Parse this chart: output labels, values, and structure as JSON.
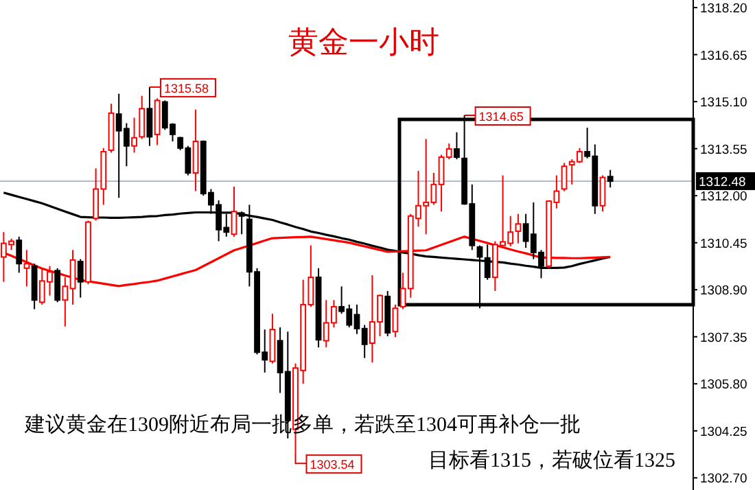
{
  "chart_data": {
    "type": "candlestick",
    "title": "黄金一小时",
    "categories": [
      null,
      null,
      null,
      null,
      null,
      null,
      null,
      null,
      null,
      null,
      null,
      null,
      null,
      null,
      null,
      null,
      null,
      null,
      null,
      null,
      null,
      null,
      null,
      null,
      null,
      null,
      null,
      null,
      null,
      null,
      null,
      null,
      null,
      null,
      null,
      null,
      null,
      null,
      null,
      null,
      null,
      null,
      null,
      null,
      null,
      null,
      null,
      null,
      null,
      null,
      null,
      null,
      null,
      null,
      null,
      null,
      null,
      null,
      null,
      null,
      null,
      null,
      null,
      null,
      null,
      null,
      null,
      null,
      null,
      null,
      null,
      null,
      null,
      null,
      null,
      null,
      null,
      null,
      null,
      null
    ],
    "ohlc": [
      [
        1309.98,
        1310.8,
        1309.16,
        1310.43
      ],
      [
        1310.39,
        1310.58,
        1310.21,
        1310.5
      ],
      [
        1310.53,
        1310.65,
        1309.46,
        1309.76
      ],
      [
        1309.61,
        1310.21,
        1309.01,
        1309.76
      ],
      [
        1309.68,
        1309.76,
        1308.26,
        1308.56
      ],
      [
        1308.49,
        1309.61,
        1308.41,
        1309.19
      ],
      [
        1309.16,
        1309.68,
        1308.71,
        1309.49
      ],
      [
        1309.53,
        1309.61,
        1308.49,
        1308.56
      ],
      [
        1308.56,
        1309.31,
        1307.69,
        1309.01
      ],
      [
        1308.94,
        1310.21,
        1308.41,
        1309.88
      ],
      [
        1309.83,
        1309.91,
        1308.64,
        1309.16
      ],
      [
        1309.16,
        1311.18,
        1309.08,
        1311.13
      ],
      [
        1311.25,
        1312.9,
        1311.18,
        1312.22
      ],
      [
        1312.22,
        1313.57,
        1311.7,
        1313.45
      ],
      [
        1313.5,
        1315.03,
        1313.42,
        1314.72
      ],
      [
        1314.69,
        1315.36,
        1311.93,
        1314.14
      ],
      [
        1314.21,
        1314.39,
        1312.97,
        1313.64
      ],
      [
        1313.64,
        1314.57,
        1313.42,
        1313.91
      ],
      [
        1313.94,
        1315.29,
        1313.87,
        1314.87
      ],
      [
        1314.87,
        1315.58,
        1313.64,
        1313.94
      ],
      [
        1314.02,
        1315.21,
        1313.67,
        1315.14
      ],
      [
        1315.09,
        1315.14,
        1314.17,
        1314.24
      ],
      [
        1314.35,
        1314.39,
        1313.79,
        1314.02
      ],
      [
        1313.91,
        1313.94,
        1313.5,
        1313.57
      ],
      [
        1313.57,
        1313.64,
        1312.67,
        1312.75
      ],
      [
        1312.75,
        1314.84,
        1312.15,
        1313.79
      ],
      [
        1313.79,
        1313.82,
        1312.0,
        1312.07
      ],
      [
        1312.1,
        1312.22,
        1311.4,
        1311.7
      ],
      [
        1311.7,
        1311.85,
        1310.5,
        1310.88
      ],
      [
        1310.95,
        1311.4,
        1310.65,
        1310.8
      ],
      [
        1310.73,
        1312.3,
        1310.65,
        1311.48
      ],
      [
        1311.43,
        1311.48,
        1310.73,
        1311.33
      ],
      [
        1311.22,
        1311.7,
        1309.01,
        1309.49
      ],
      [
        1309.49,
        1309.61,
        1306.77,
        1306.84
      ],
      [
        1306.84,
        1307.59,
        1306.17,
        1306.59
      ],
      [
        1306.54,
        1308.11,
        1306.47,
        1307.59
      ],
      [
        1307.22,
        1307.66,
        1305.5,
        1306.17
      ],
      [
        1306.2,
        1307.52,
        1304.0,
        1304.6
      ],
      [
        1304.3,
        1306.47,
        1303.54,
        1306.32
      ],
      [
        1306.24,
        1309.23,
        1305.8,
        1308.41
      ],
      [
        1308.41,
        1310.36,
        1308.34,
        1309.31
      ],
      [
        1309.31,
        1309.61,
        1307.0,
        1307.25
      ],
      [
        1307.22,
        1308.56,
        1307.0,
        1307.81
      ],
      [
        1307.81,
        1308.56,
        1307.66,
        1308.34
      ],
      [
        1308.34,
        1309.01,
        1308.11,
        1308.19
      ],
      [
        1308.26,
        1308.41,
        1307.66,
        1307.74
      ],
      [
        1308.08,
        1308.41,
        1307.44,
        1307.62
      ],
      [
        1307.62,
        1307.74,
        1306.65,
        1307.1
      ],
      [
        1307.14,
        1309.38,
        1306.5,
        1307.84
      ],
      [
        1307.84,
        1308.74,
        1307.37,
        1308.71
      ],
      [
        1308.68,
        1308.86,
        1307.37,
        1307.48
      ],
      [
        1307.52,
        1308.41,
        1307.34,
        1308.29
      ],
      [
        1308.34,
        1309.46,
        1308.26,
        1308.94
      ],
      [
        1308.94,
        1311.4,
        1308.64,
        1311.33
      ],
      [
        1311.25,
        1312.82,
        1310.98,
        1311.67
      ],
      [
        1311.67,
        1313.87,
        1310.73,
        1311.78
      ],
      [
        1311.78,
        1312.75,
        1311.7,
        1312.37
      ],
      [
        1312.37,
        1313.35,
        1311.48,
        1313.27
      ],
      [
        1313.27,
        1313.72,
        1313.2,
        1313.54
      ],
      [
        1313.54,
        1314.09,
        1313.2,
        1313.27
      ],
      [
        1313.23,
        1314.65,
        1311.7,
        1311.73
      ],
      [
        1311.73,
        1312.37,
        1310.21,
        1310.36
      ],
      [
        1310.31,
        1310.36,
        1308.29,
        1309.98
      ],
      [
        1309.95,
        1310.39,
        1309.23,
        1309.31
      ],
      [
        1309.31,
        1310.5,
        1308.86,
        1310.39
      ],
      [
        1310.36,
        1312.67,
        1310.36,
        1310.48
      ],
      [
        1310.43,
        1311.33,
        1310.33,
        1310.8
      ],
      [
        1310.83,
        1311.4,
        1310.43,
        1311.07
      ],
      [
        1311.07,
        1311.4,
        1310.28,
        1310.5
      ],
      [
        1310.73,
        1311.78,
        1309.91,
        1310.13
      ],
      [
        1310.13,
        1310.21,
        1309.28,
        1309.68
      ],
      [
        1309.68,
        1311.85,
        1309.61,
        1311.82
      ],
      [
        1311.78,
        1312.67,
        1311.58,
        1312.15
      ],
      [
        1312.22,
        1313.08,
        1312.15,
        1312.97
      ],
      [
        1313.02,
        1313.2,
        1312.37,
        1313.12
      ],
      [
        1313.12,
        1313.57,
        1313.08,
        1313.45
      ],
      [
        1313.45,
        1314.24,
        1313.23,
        1313.3
      ],
      [
        1313.3,
        1313.69,
        1311.4,
        1311.67
      ],
      [
        1311.67,
        1312.67,
        1311.48,
        1312.6
      ],
      [
        1312.63,
        1312.85,
        1312.27,
        1312.48
      ]
    ],
    "colors": [
      "#ff0000",
      "#ff0000",
      "#000000",
      "#ff0000",
      "#000000",
      "#ff0000",
      "#ff0000",
      "#000000",
      "#ff0000",
      "#ff0000",
      "#000000",
      "#ff0000",
      "#ff0000",
      "#ff0000",
      "#ff0000",
      "#000000",
      "#000000",
      "#ff0000",
      "#ff0000",
      "#000000",
      "#ff0000",
      "#000000",
      "#000000",
      "#000000",
      "#000000",
      "#ff0000",
      "#000000",
      "#000000",
      "#000000",
      "#000000",
      "#ff0000",
      "#000000",
      "#000000",
      "#000000",
      "#000000",
      "#ff0000",
      "#000000",
      "#000000",
      "#ff0000",
      "#ff0000",
      "#ff0000",
      "#000000",
      "#ff0000",
      "#ff0000",
      "#000000",
      "#000000",
      "#000000",
      "#000000",
      "#ff0000",
      "#ff0000",
      "#000000",
      "#ff0000",
      "#ff0000",
      "#ff0000",
      "#ff0000",
      "#ff0000",
      "#ff0000",
      "#ff0000",
      "#ff0000",
      "#000000",
      "#000000",
      "#000000",
      "#000000",
      "#000000",
      "#ff0000",
      "#ff0000",
      "#ff0000",
      "#ff0000",
      "#000000",
      "#000000",
      "#000000",
      "#ff0000",
      "#ff0000",
      "#ff0000",
      "#ff0000",
      "#ff0000",
      "#000000",
      "#000000",
      "#ff0000",
      "#000000"
    ],
    "series": [
      {
        "type": "line",
        "color": "#000000",
        "values": [
          1312.1,
          1312.03,
          1311.96,
          1311.89,
          1311.82,
          1311.75,
          1311.66,
          1311.57,
          1311.48,
          1311.39,
          1311.3,
          1311.29,
          1311.28,
          1311.28,
          1311.27,
          1311.27,
          1311.28,
          1311.29,
          1311.3,
          1311.32,
          1311.33,
          1311.36,
          1311.38,
          1311.41,
          1311.43,
          1311.45,
          1311.45,
          1311.45,
          1311.44,
          1311.44,
          1311.44,
          1311.39,
          1311.34,
          1311.3,
          1311.25,
          1311.2,
          1311.12,
          1311.05,
          1310.97,
          1310.9,
          1310.82,
          1310.77,
          1310.71,
          1310.66,
          1310.6,
          1310.55,
          1310.48,
          1310.42,
          1310.35,
          1310.29,
          1310.22,
          1310.18,
          1310.13,
          1310.09,
          1310.04,
          1310.0,
          1309.98,
          1309.96,
          1309.94,
          1309.92,
          1309.9,
          1309.88,
          1309.86,
          1309.84,
          1309.82,
          1309.8,
          1309.76,
          1309.73,
          1309.69,
          1309.66,
          1309.62,
          1309.62,
          1309.62,
          1309.63,
          1309.68,
          1309.75,
          1309.81,
          1309.87,
          1309.93,
          1309.98
        ]
      },
      {
        "type": "line",
        "color": "#ff0000",
        "values": [
          1310.12,
          1310.02,
          1309.91,
          1309.81,
          1309.7,
          1309.6,
          1309.52,
          1309.45,
          1309.37,
          1309.3,
          1309.22,
          1309.18,
          1309.14,
          1309.1,
          1309.06,
          1309.02,
          1309.06,
          1309.09,
          1309.13,
          1309.16,
          1309.2,
          1309.27,
          1309.34,
          1309.41,
          1309.48,
          1309.55,
          1309.68,
          1309.81,
          1309.94,
          1310.07,
          1310.2,
          1310.28,
          1310.36,
          1310.44,
          1310.52,
          1310.6,
          1310.61,
          1310.62,
          1310.63,
          1310.64,
          1310.65,
          1310.61,
          1310.57,
          1310.53,
          1310.49,
          1310.45,
          1310.39,
          1310.33,
          1310.27,
          1310.21,
          1310.15,
          1310.16,
          1310.17,
          1310.18,
          1310.19,
          1310.2,
          1310.29,
          1310.38,
          1310.47,
          1310.56,
          1310.65,
          1310.58,
          1310.51,
          1310.44,
          1310.37,
          1310.3,
          1310.23,
          1310.16,
          1310.1,
          1310.03,
          1309.96,
          1309.96,
          1309.95,
          1309.95,
          1309.94,
          1309.94,
          1309.95,
          1309.96,
          1309.97,
          1309.98
        ]
      }
    ],
    "ylim": [
      1302.3,
      1318.45
    ],
    "yticks": [
      {
        "value": 1302.7,
        "label": "1302.70"
      },
      {
        "value": 1304.25,
        "label": "1304.25"
      },
      {
        "value": 1305.8,
        "label": "1305.80"
      },
      {
        "value": 1307.35,
        "label": "1307.35"
      },
      {
        "value": 1308.9,
        "label": "1308.90"
      },
      {
        "value": 1310.45,
        "label": "1310.45"
      },
      {
        "value": 1312,
        "label": "1312.00"
      },
      {
        "value": 1313.55,
        "label": "1313.55"
      },
      {
        "value": 1315.1,
        "label": "1315.10"
      },
      {
        "value": 1316.65,
        "label": "1316.65"
      },
      {
        "value": 1318.2,
        "label": "1318.20"
      }
    ],
    "ref_lines": [
      {
        "axis": "y",
        "value": 1312.48,
        "label": "1312.48",
        "color": "#b4bccc"
      }
    ],
    "annotations": [
      {
        "text": "1315.58",
        "y": 1315.58
      },
      {
        "text": "1314.65",
        "y": 1314.65
      },
      "1303.54",
      "建议黄金在1309附近布局一批多单，若跌至1304可再补仓一批",
      "目标看1315，若破位看1325"
    ],
    "tick_labels": "y"
  }
}
